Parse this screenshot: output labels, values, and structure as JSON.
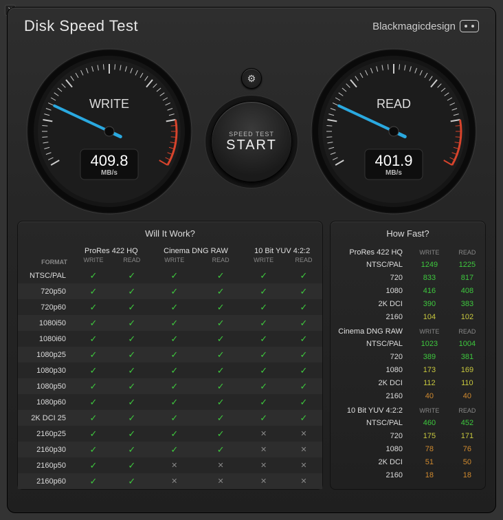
{
  "title": "Disk Speed Test",
  "brand": "Blackmagicdesign",
  "settings_icon": "gear-icon",
  "start_button": {
    "small": "SPEED TEST",
    "big": "START"
  },
  "gauges": {
    "write": {
      "label": "WRITE",
      "value": "409.8",
      "unit": "MB/s",
      "angle": -155
    },
    "read": {
      "label": "READ",
      "value": "401.9",
      "unit": "MB/s",
      "angle": -155
    }
  },
  "will_it_work": {
    "title": "Will It Work?",
    "format_label": "FORMAT",
    "groups": [
      {
        "name": "ProRes 422 HQ",
        "subs": [
          "WRITE",
          "READ"
        ]
      },
      {
        "name": "Cinema DNG RAW",
        "subs": [
          "WRITE",
          "READ"
        ]
      },
      {
        "name": "10 Bit YUV 4:2:2",
        "subs": [
          "WRITE",
          "READ"
        ]
      }
    ],
    "rows": [
      {
        "label": "NTSC/PAL",
        "cells": [
          1,
          1,
          1,
          1,
          1,
          1
        ]
      },
      {
        "label": "720p50",
        "cells": [
          1,
          1,
          1,
          1,
          1,
          1
        ]
      },
      {
        "label": "720p60",
        "cells": [
          1,
          1,
          1,
          1,
          1,
          1
        ]
      },
      {
        "label": "1080i50",
        "cells": [
          1,
          1,
          1,
          1,
          1,
          1
        ]
      },
      {
        "label": "1080i60",
        "cells": [
          1,
          1,
          1,
          1,
          1,
          1
        ]
      },
      {
        "label": "1080p25",
        "cells": [
          1,
          1,
          1,
          1,
          1,
          1
        ]
      },
      {
        "label": "1080p30",
        "cells": [
          1,
          1,
          1,
          1,
          1,
          1
        ]
      },
      {
        "label": "1080p50",
        "cells": [
          1,
          1,
          1,
          1,
          1,
          1
        ]
      },
      {
        "label": "1080p60",
        "cells": [
          1,
          1,
          1,
          1,
          1,
          1
        ]
      },
      {
        "label": "2K DCI 25",
        "cells": [
          1,
          1,
          1,
          1,
          1,
          1
        ]
      },
      {
        "label": "2160p25",
        "cells": [
          1,
          1,
          1,
          1,
          0,
          0
        ]
      },
      {
        "label": "2160p30",
        "cells": [
          1,
          1,
          1,
          1,
          0,
          0
        ]
      },
      {
        "label": "2160p50",
        "cells": [
          1,
          1,
          0,
          0,
          0,
          0
        ]
      },
      {
        "label": "2160p60",
        "cells": [
          1,
          1,
          0,
          0,
          0,
          0
        ]
      }
    ]
  },
  "how_fast": {
    "title": "How Fast?",
    "sub_labels": [
      "WRITE",
      "READ"
    ],
    "sections": [
      {
        "name": "ProRes 422 HQ",
        "rows": [
          {
            "label": "NTSC/PAL",
            "write": "1249",
            "read": "1225",
            "c": "v-green"
          },
          {
            "label": "720",
            "write": "833",
            "read": "817",
            "c": "v-green"
          },
          {
            "label": "1080",
            "write": "416",
            "read": "408",
            "c": "v-green"
          },
          {
            "label": "2K DCI",
            "write": "390",
            "read": "383",
            "c": "v-green"
          },
          {
            "label": "2160",
            "write": "104",
            "read": "102",
            "c": "v-yellow"
          }
        ]
      },
      {
        "name": "Cinema DNG RAW",
        "rows": [
          {
            "label": "NTSC/PAL",
            "write": "1023",
            "read": "1004",
            "c": "v-green"
          },
          {
            "label": "720",
            "write": "389",
            "read": "381",
            "c": "v-green"
          },
          {
            "label": "1080",
            "write": "173",
            "read": "169",
            "c": "v-yellow"
          },
          {
            "label": "2K DCI",
            "write": "112",
            "read": "110",
            "c": "v-yellow"
          },
          {
            "label": "2160",
            "write": "40",
            "read": "40",
            "c": "v-orange"
          }
        ]
      },
      {
        "name": "10 Bit YUV 4:2:2",
        "rows": [
          {
            "label": "NTSC/PAL",
            "write": "460",
            "read": "452",
            "c": "v-green"
          },
          {
            "label": "720",
            "write": "175",
            "read": "171",
            "c": "v-yellow"
          },
          {
            "label": "1080",
            "write": "78",
            "read": "76",
            "c": "v-orange"
          },
          {
            "label": "2K DCI",
            "write": "51",
            "read": "50",
            "c": "v-orange"
          },
          {
            "label": "2160",
            "write": "18",
            "read": "18",
            "c": "v-orange"
          }
        ]
      }
    ]
  },
  "colors": {
    "needle": "#2aa9e0",
    "arc_red": "#d8442c",
    "tick": "#cccccc"
  }
}
